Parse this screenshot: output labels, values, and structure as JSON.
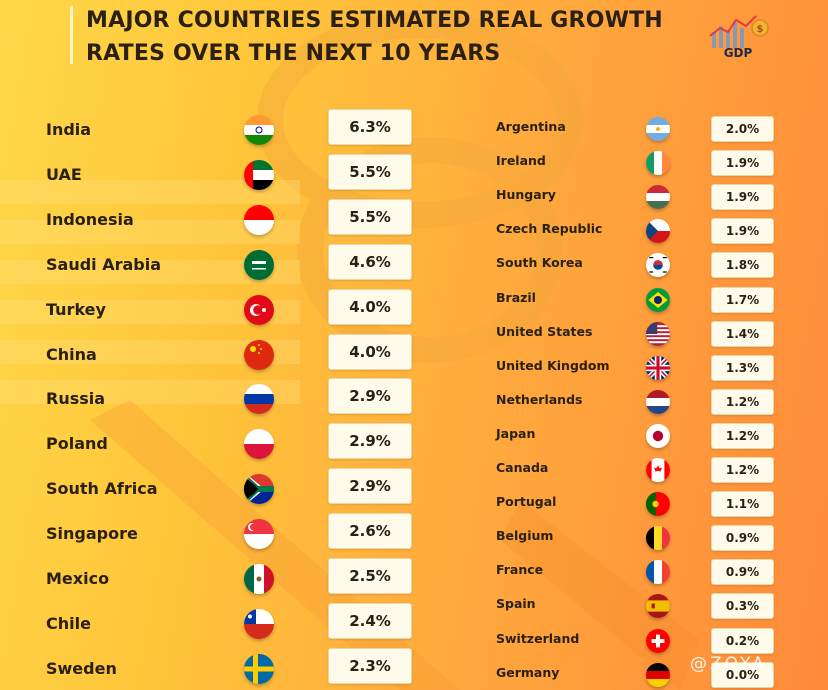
{
  "title": "MAJOR COUNTRIES ESTIMATED REAL GROWTH RATES OVER THE NEXT 10 YEARS",
  "logo_label": "GDP",
  "watermark": "@ZOYA",
  "colors": {
    "background_start": "#ffd84a",
    "background_end": "#ff8a3a",
    "value_box": "#fffbea",
    "text": "#2a2014"
  },
  "chart_data": {
    "type": "table",
    "title": "MAJOR COUNTRIES ESTIMATED REAL GROWTH RATES OVER THE NEXT 10 YEARS",
    "columns": [
      {
        "rows": [
          {
            "country": "India",
            "value": "6.3%",
            "flag": "india-flag-icon"
          },
          {
            "country": "UAE",
            "value": "5.5%",
            "flag": "uae-flag-icon"
          },
          {
            "country": "Indonesia",
            "value": "5.5%",
            "flag": "indonesia-flag-icon"
          },
          {
            "country": "Saudi Arabia",
            "value": "4.6%",
            "flag": "saudi-arabia-flag-icon"
          },
          {
            "country": "Turkey",
            "value": "4.0%",
            "flag": "turkey-flag-icon"
          },
          {
            "country": "China",
            "value": "4.0%",
            "flag": "china-flag-icon"
          },
          {
            "country": "Russia",
            "value": "2.9%",
            "flag": "russia-flag-icon"
          },
          {
            "country": "Poland",
            "value": "2.9%",
            "flag": "poland-flag-icon"
          },
          {
            "country": "South Africa",
            "value": "2.9%",
            "flag": "south-africa-flag-icon"
          },
          {
            "country": "Singapore",
            "value": "2.6%",
            "flag": "singapore-flag-icon"
          },
          {
            "country": "Mexico",
            "value": "2.5%",
            "flag": "mexico-flag-icon"
          },
          {
            "country": "Chile",
            "value": "2.4%",
            "flag": "chile-flag-icon"
          },
          {
            "country": "Sweden",
            "value": "2.3%",
            "flag": "sweden-flag-icon"
          }
        ]
      },
      {
        "rows": [
          {
            "country": "Argentina",
            "value": "2.0%",
            "flag": "argentina-flag-icon"
          },
          {
            "country": "Ireland",
            "value": "1.9%",
            "flag": "ireland-flag-icon"
          },
          {
            "country": "Hungary",
            "value": "1.9%",
            "flag": "hungary-flag-icon"
          },
          {
            "country": "Czech Republic",
            "value": "1.9%",
            "flag": "czech-republic-flag-icon"
          },
          {
            "country": "South Korea",
            "value": "1.8%",
            "flag": "south-korea-flag-icon"
          },
          {
            "country": "Brazil",
            "value": "1.7%",
            "flag": "brazil-flag-icon"
          },
          {
            "country": "United States",
            "value": "1.4%",
            "flag": "united-states-flag-icon"
          },
          {
            "country": "United Kingdom",
            "value": "1.3%",
            "flag": "united-kingdom-flag-icon"
          },
          {
            "country": "Netherlands",
            "value": "1.2%",
            "flag": "netherlands-flag-icon"
          },
          {
            "country": "Japan",
            "value": "1.2%",
            "flag": "japan-flag-icon"
          },
          {
            "country": "Canada",
            "value": "1.2%",
            "flag": "canada-flag-icon"
          },
          {
            "country": "Portugal",
            "value": "1.1%",
            "flag": "portugal-flag-icon"
          },
          {
            "country": "Belgium",
            "value": "0.9%",
            "flag": "belgium-flag-icon"
          },
          {
            "country": "France",
            "value": "0.9%",
            "flag": "france-flag-icon"
          },
          {
            "country": "Spain",
            "value": "0.3%",
            "flag": "spain-flag-icon"
          },
          {
            "country": "Switzerland",
            "value": "0.2%",
            "flag": "switzerland-flag-icon"
          },
          {
            "country": "Germany",
            "value": "0.0%",
            "flag": "germany-flag-icon"
          }
        ]
      }
    ]
  }
}
